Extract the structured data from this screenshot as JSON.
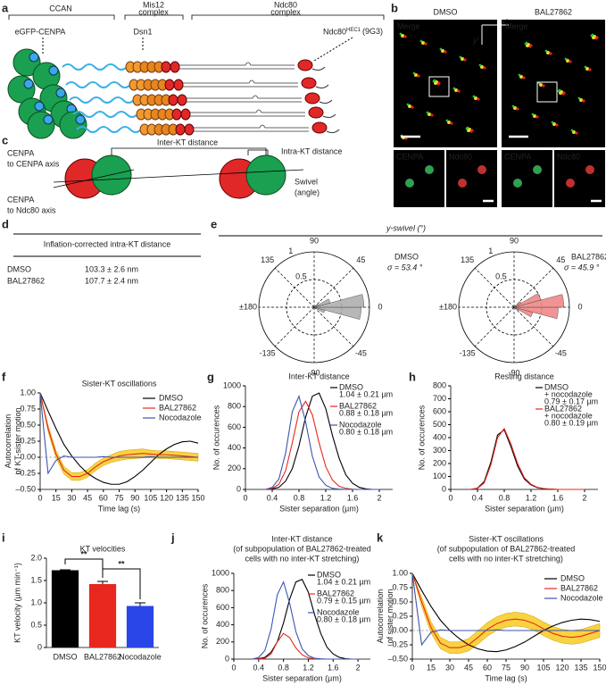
{
  "panel_labels": [
    "a",
    "b",
    "c",
    "d",
    "e",
    "f",
    "g",
    "h",
    "i",
    "j",
    "k"
  ],
  "a": {
    "ccan": "CCAN",
    "mis12": [
      "Mis12",
      "complex"
    ],
    "ndc80": [
      "Ndc80",
      "complex"
    ],
    "cenpa": "eGFP-CENPA",
    "dsn1": "Dsn1",
    "ndc80_label": "Ndc80",
    "ndc80_sup": "HEC1",
    "ndc80_ab": "(9G3)"
  },
  "b": {
    "conditions": [
      "DMSO",
      "BAL27862"
    ],
    "merge": "Merge",
    "x_axis": "x'",
    "y_axis": "y'",
    "cenpa": "CENPA",
    "ndc80": "Ndc80"
  },
  "c": {
    "inter": "Inter-KT distance",
    "intra": "Intra-KT distance",
    "cenpa_axis": [
      "CENPA",
      "to CENPA axis"
    ],
    "ndc80_axis": [
      "CENPA",
      "to Ndc80 axis"
    ],
    "swivel": [
      "Swivel",
      "(angle)"
    ]
  },
  "d": {
    "title": "Inflation-corrected intra-KT distance",
    "rows": [
      [
        "DMSO",
        "103.3 ± 2.6 nm"
      ],
      [
        "BAL27862",
        "107.7 ± 2.4 nm"
      ]
    ]
  },
  "e": {
    "title": "y-swivel (°)"
  },
  "chart_data": [
    {
      "type": "polar",
      "series": [
        {
          "name": "DMSO",
          "color": "#aaaaaa",
          "annotation": "σ = 53.4 °",
          "bins": [
            -45,
            -30,
            -15,
            0,
            15,
            30,
            45
          ],
          "values": [
            0.05,
            0.2,
            0.85,
            0.9,
            0.3,
            0.08
          ]
        }
      ],
      "rlim": [
        0,
        1
      ],
      "rticks": [
        0.5,
        1
      ],
      "angle_ticks": [
        90,
        45,
        0,
        -45,
        -90,
        -135,
        {
          "value": 180,
          "label": "±180"
        },
        135
      ]
    },
    {
      "type": "polar",
      "series": [
        {
          "name": "BAL27862",
          "color": "#f08080",
          "annotation": "σ = 45.9 °",
          "bins": [
            -45,
            -30,
            -15,
            0,
            15,
            30,
            45
          ],
          "values": [
            0.1,
            0.35,
            0.8,
            0.9,
            0.5,
            0.15
          ]
        }
      ],
      "rlim": [
        0,
        1
      ],
      "rticks": [
        0.5,
        1
      ],
      "angle_ticks": [
        90,
        45,
        0,
        -45,
        -90,
        -135,
        {
          "value": 180,
          "label": "±180"
        },
        135
      ]
    },
    {
      "type": "line",
      "title": [
        "Sister-KT oscillations"
      ],
      "xlabel": "Time lag (s)",
      "ylabel": [
        "Autocorrelation",
        "of KT-sister motion"
      ],
      "x": [
        0,
        7.5,
        15,
        22.5,
        30,
        37.5,
        45,
        52.5,
        60,
        67.5,
        75,
        82.5,
        90,
        97.5,
        105,
        112.5,
        120,
        127.5,
        135,
        142.5,
        150
      ],
      "series": [
        {
          "name": "DMSO",
          "color": "#000000",
          "values": [
            1,
            0.72,
            0.45,
            0.2,
            0.02,
            -0.13,
            -0.25,
            -0.33,
            -0.39,
            -0.42,
            -0.42,
            -0.38,
            -0.3,
            -0.2,
            -0.08,
            0.04,
            0.13,
            0.2,
            0.24,
            0.25,
            0.22
          ]
        },
        {
          "name": "BAL27862",
          "color": "#e8281e",
          "band_color": "#f5c400",
          "values": [
            1,
            0.45,
            0.05,
            -0.2,
            -0.3,
            -0.3,
            -0.25,
            -0.15,
            -0.07,
            -0.02,
            0.02,
            0.04,
            0.05,
            0.06,
            0.05,
            0.04,
            0.04,
            0.03,
            0.02,
            0.01,
            0
          ],
          "errors": [
            0,
            0.05,
            0.06,
            0.06,
            0.06,
            0.06,
            0.06,
            0.06,
            0.06,
            0.06,
            0.07,
            0.07,
            0.07,
            0.07,
            0.06,
            0.06,
            0.06,
            0.06,
            0.06,
            0.06,
            0.06
          ]
        },
        {
          "name": "Nocodazole",
          "color": "#3a56b0",
          "values": [
            1,
            -0.25,
            -0.05,
            0.02,
            0,
            0,
            0,
            0,
            0.01,
            0,
            0,
            0,
            0,
            0,
            0.01,
            0,
            0,
            0,
            0,
            0,
            0
          ]
        }
      ],
      "xlim": [
        0,
        150
      ],
      "xticks": [
        0,
        15,
        30,
        45,
        60,
        75,
        90,
        105,
        120,
        135,
        150
      ],
      "ylim": [
        -0.5,
        1
      ],
      "yticks": [
        {
          "value": -0.5,
          "label": "–0.50"
        },
        {
          "value": -0.25,
          "label": "–0.25"
        },
        {
          "value": 0,
          "label": "0.00"
        },
        {
          "value": 0.25,
          "label": "0.25"
        },
        {
          "value": 0.5,
          "label": "0.50"
        },
        {
          "value": 0.75,
          "label": "0.75"
        },
        {
          "value": 1,
          "label": "1.00"
        }
      ],
      "zero_line": true
    },
    {
      "type": "line",
      "title": [
        "Inter-KT distance"
      ],
      "xlabel": "Sister separation (µm)",
      "ylabel": [
        "No. of occurences"
      ],
      "x": [
        0.3,
        0.4,
        0.5,
        0.6,
        0.7,
        0.8,
        0.9,
        1.0,
        1.1,
        1.2,
        1.3,
        1.4,
        1.5,
        1.6,
        1.7,
        1.8,
        1.9,
        2.0
      ],
      "series": [
        {
          "name": "DMSO",
          "stat": "1.04 ± 0.21 µm",
          "color": "#000000",
          "values": [
            0,
            5,
            20,
            80,
            200,
            420,
            700,
            900,
            930,
            780,
            520,
            300,
            140,
            60,
            20,
            5,
            0,
            0
          ]
        },
        {
          "name": "BAL27862",
          "stat": "0.88 ± 0.18 µm",
          "color": "#e8281e",
          "values": [
            0,
            10,
            50,
            180,
            450,
            750,
            850,
            720,
            450,
            220,
            90,
            30,
            10,
            2,
            0,
            0,
            0,
            0
          ]
        },
        {
          "name": "Nocodazole",
          "stat": "0.80 ± 0.18 µm",
          "color": "#3a56b0",
          "values": [
            0,
            20,
            100,
            350,
            750,
            900,
            650,
            320,
            120,
            40,
            10,
            3,
            0,
            0,
            0,
            0,
            0,
            0
          ]
        }
      ],
      "xlim": [
        0,
        2.2
      ],
      "xticks": [
        0,
        0.4,
        0.8,
        1.2,
        1.6,
        2
      ],
      "ylim": [
        0,
        1000
      ],
      "yticks": [
        0,
        200,
        400,
        600,
        800,
        1000
      ]
    },
    {
      "type": "line",
      "title": [
        "Resting distance"
      ],
      "xlabel": "Sister separation (µm)",
      "ylabel": [
        "No. of occurences"
      ],
      "x": [
        0.3,
        0.4,
        0.5,
        0.6,
        0.7,
        0.8,
        0.9,
        1.0,
        1.1,
        1.2,
        1.3,
        1.4,
        1.5,
        1.6,
        1.7,
        1.8,
        1.9,
        2.0
      ],
      "series": [
        {
          "name": [
            "DMSO",
            "+ nocodazole"
          ],
          "stat": "0.79 ± 0.17 µm",
          "color": "#000000",
          "values": [
            0,
            10,
            60,
            210,
            420,
            460,
            330,
            180,
            80,
            35,
            12,
            5,
            2,
            0,
            0,
            0,
            0,
            0
          ]
        },
        {
          "name": [
            "BAL27862",
            "+ nocodazole"
          ],
          "stat": "0.80 ± 0.19 µm",
          "color": "#e8281e",
          "values": [
            0,
            8,
            50,
            190,
            400,
            470,
            350,
            200,
            90,
            40,
            15,
            6,
            2,
            0,
            0,
            0,
            0,
            0
          ]
        }
      ],
      "xlim": [
        0,
        2.2
      ],
      "xticks": [
        0,
        0.4,
        0.8,
        1.2,
        1.6,
        2
      ],
      "ylim": [
        0,
        800
      ],
      "yticks": [
        0,
        100,
        200,
        300,
        400,
        500,
        600,
        700,
        800
      ]
    },
    {
      "type": "bar",
      "title": [
        "KT velocities"
      ],
      "ylabel": [
        "KT velocity (µm min⁻¹)"
      ],
      "categories": [
        "DMSO",
        "BAL27862",
        "Nocodazole"
      ],
      "values": [
        1.73,
        1.42,
        0.93
      ],
      "errors": [
        0.01,
        0.06,
        0.07
      ],
      "colors": [
        "#000000",
        "#e8281e",
        "#2a45e8"
      ],
      "ylim": [
        0,
        2
      ],
      "yticks": [
        0,
        0.5,
        {
          "value": 1,
          "label": "1.0"
        },
        1.5,
        {
          "value": 2,
          "label": "2.0"
        }
      ],
      "significance": [
        "**",
        "**"
      ]
    },
    {
      "type": "line",
      "title": [
        "Inter-KT distance",
        "(of subpopulation of BAL27862-treated",
        "cells with no inter-KT stretching)"
      ],
      "xlabel": "Sister separation (µm)",
      "ylabel": [
        "No. of occurences"
      ],
      "x": [
        0.3,
        0.4,
        0.5,
        0.6,
        0.7,
        0.8,
        0.9,
        1.0,
        1.1,
        1.2,
        1.3,
        1.4,
        1.5,
        1.6,
        1.7,
        1.8,
        1.9,
        2.0
      ],
      "series": [
        {
          "name": "DMSO",
          "stat": "1.04 ± 0.21 µm",
          "color": "#000000",
          "values": [
            0,
            5,
            20,
            80,
            200,
            420,
            700,
            900,
            930,
            780,
            520,
            300,
            140,
            60,
            20,
            5,
            0,
            0
          ]
        },
        {
          "name": "BAL27862",
          "stat": "0.79 ± 0.15 µm",
          "color": "#e8281e",
          "values": [
            0,
            0,
            10,
            60,
            200,
            300,
            250,
            130,
            50,
            15,
            5,
            0,
            0,
            0,
            0,
            0,
            0,
            0
          ]
        },
        {
          "name": "Nocodazole",
          "stat": "0.80 ± 0.18 µm",
          "color": "#3a56b0",
          "values": [
            0,
            20,
            100,
            350,
            750,
            900,
            650,
            320,
            120,
            40,
            10,
            3,
            0,
            0,
            0,
            0,
            0,
            0
          ]
        }
      ],
      "xlim": [
        0,
        2.2
      ],
      "xticks": [
        0,
        0.4,
        0.8,
        1.2,
        1.6,
        2
      ],
      "ylim": [
        0,
        1000
      ],
      "yticks": [
        0,
        200,
        400,
        600,
        800,
        1000
      ]
    },
    {
      "type": "line",
      "title": [
        "Sister-KT oscillations",
        "(of subpopulation of BAL27862-treated",
        "cells with no inter-KT stretching)"
      ],
      "xlabel": "Time lag (s)",
      "ylabel": [
        "Autocorrelation",
        "of sister motion"
      ],
      "x": [
        0,
        7.5,
        15,
        22.5,
        30,
        37.5,
        45,
        52.5,
        60,
        67.5,
        75,
        82.5,
        90,
        97.5,
        105,
        112.5,
        120,
        127.5,
        135,
        142.5,
        150
      ],
      "series": [
        {
          "name": "DMSO",
          "color": "#000000",
          "values": [
            1,
            0.7,
            0.42,
            0.18,
            0,
            -0.14,
            -0.25,
            -0.32,
            -0.36,
            -0.37,
            -0.34,
            -0.28,
            -0.2,
            -0.1,
            0,
            0.08,
            0.14,
            0.18,
            0.2,
            0.19,
            0.16
          ]
        },
        {
          "name": "BAL27862",
          "color": "#e8281e",
          "band_color": "#f5c400",
          "values": [
            1,
            0.5,
            0.05,
            -0.22,
            -0.3,
            -0.3,
            -0.25,
            -0.12,
            0.02,
            0.12,
            0.18,
            0.2,
            0.18,
            0.12,
            0.03,
            -0.05,
            -0.1,
            -0.12,
            -0.1,
            -0.05,
            0
          ],
          "errors": [
            0,
            0.08,
            0.1,
            0.1,
            0.1,
            0.1,
            0.11,
            0.12,
            0.12,
            0.12,
            0.12,
            0.12,
            0.12,
            0.12,
            0.12,
            0.12,
            0.12,
            0.12,
            0.12,
            0.12,
            0.12
          ]
        },
        {
          "name": "Nocodazole",
          "color": "#3a56b0",
          "values": [
            1,
            -0.25,
            -0.03,
            0.01,
            0,
            0,
            0,
            0,
            0,
            0.01,
            0,
            0,
            0,
            0,
            0,
            0,
            0,
            0,
            0,
            0,
            0
          ]
        }
      ],
      "xlim": [
        0,
        150
      ],
      "xticks": [
        0,
        15,
        30,
        45,
        60,
        75,
        90,
        105,
        120,
        135,
        150
      ],
      "ylim": [
        -0.5,
        1
      ],
      "yticks": [
        {
          "value": -0.5,
          "label": "–0.50"
        },
        {
          "value": -0.25,
          "label": "–0.25"
        },
        {
          "value": 0,
          "label": "0.00"
        },
        {
          "value": 0.25,
          "label": "0.25"
        },
        {
          "value": 0.5,
          "label": "0.50"
        },
        {
          "value": 0.75,
          "label": "0.75"
        },
        {
          "value": 1,
          "label": "1.00"
        }
      ],
      "zero_line": true
    }
  ]
}
